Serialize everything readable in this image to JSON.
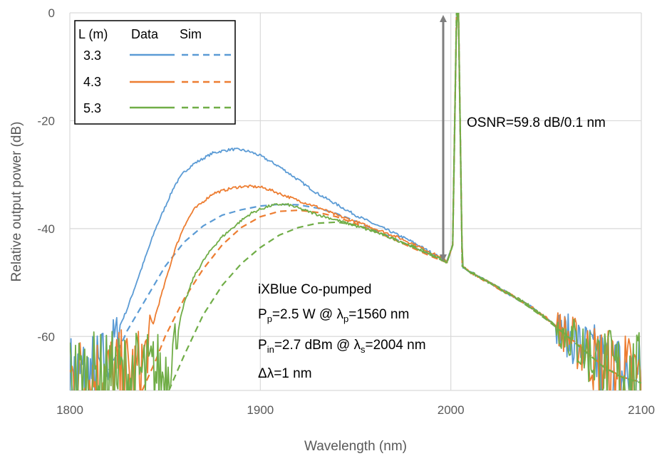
{
  "colors": {
    "series_3_3": "#5b9bd5",
    "series_4_3": "#ed7d31",
    "series_5_3": "#70ad47",
    "gridline": "#d9d9d9",
    "arrow": "#7f7f7f"
  },
  "chart_data": {
    "type": "line",
    "title": "",
    "xlabel": "Wavelength (nm)",
    "ylabel": "Relative output power (dB)",
    "xlim": [
      1800,
      2100
    ],
    "ylim": [
      -70,
      0
    ],
    "x_ticks": [
      1800,
      1900,
      2000,
      2100
    ],
    "y_ticks": [
      0,
      -20,
      -40,
      -60
    ],
    "x_tick_labels": [
      "1800",
      "1900",
      "2000",
      "2100"
    ],
    "y_tick_labels": [
      "0",
      "-20",
      "-40",
      "-60"
    ],
    "grid": true,
    "legend": {
      "placement": "top-left",
      "header": [
        "L (m)",
        "Data",
        "Sim"
      ],
      "rows": [
        "3.3",
        "4.3",
        "5.3"
      ]
    },
    "series": [
      {
        "name": "3.3",
        "kind": "Data",
        "color": "#5b9bd5",
        "x": [
          1800,
          1815,
          1820,
          1825,
          1830,
          1835,
          1840,
          1845,
          1850,
          1855,
          1860,
          1865,
          1870,
          1875,
          1880,
          1885,
          1890,
          1895,
          1900,
          1910,
          1920,
          1930,
          1940,
          1950,
          1960,
          1970,
          1980,
          1990,
          1998,
          2001,
          2003,
          2004,
          2006,
          2010,
          2020,
          2030,
          2040,
          2050,
          2060,
          2070,
          2080,
          2090,
          2100
        ],
        "y": [
          -68,
          -67,
          -64,
          -59,
          -55,
          -50,
          -45,
          -40,
          -36,
          -32,
          -29.5,
          -28,
          -27,
          -26,
          -25.6,
          -25.3,
          -25.4,
          -25.8,
          -26.5,
          -28.5,
          -31,
          -33.5,
          -35.5,
          -37.5,
          -39.2,
          -40.8,
          -42.5,
          -44.5,
          -46,
          -43,
          0,
          0,
          -47,
          -48,
          -50,
          -52,
          -54,
          -56.5,
          -59.5,
          -62.5,
          -65.5,
          -67.5,
          -68
        ]
      },
      {
        "name": "3.3",
        "kind": "Sim",
        "color": "#5b9bd5",
        "x": [
          1818,
          1825,
          1830,
          1840,
          1850,
          1860,
          1870,
          1880,
          1890,
          1900,
          1910,
          1920,
          1930,
          1940,
          1950,
          1960,
          1970,
          1980,
          1990,
          1998,
          2001,
          2003,
          2004,
          2006,
          2010,
          2020,
          2030,
          2040,
          2050,
          2060,
          2070,
          2080,
          2090,
          2100
        ],
        "y": [
          -68,
          -63,
          -59,
          -53,
          -47,
          -42.5,
          -39.5,
          -37.5,
          -36.5,
          -35.8,
          -35.5,
          -35.6,
          -36.2,
          -37.2,
          -38.6,
          -40.2,
          -41.8,
          -43.4,
          -45,
          -46.2,
          -43,
          0,
          0,
          -47,
          -48,
          -50,
          -52,
          -54.2,
          -56.5,
          -59.5,
          -62.5,
          -65.5,
          -67.5,
          -68.5
        ]
      },
      {
        "name": "4.3",
        "kind": "Data",
        "color": "#ed7d31",
        "x": [
          1800,
          1835,
          1840,
          1845,
          1850,
          1855,
          1860,
          1865,
          1870,
          1875,
          1880,
          1885,
          1890,
          1895,
          1900,
          1905,
          1910,
          1920,
          1930,
          1940,
          1950,
          1960,
          1970,
          1980,
          1990,
          1998,
          2001,
          2003,
          2004,
          2006,
          2010,
          2020,
          2030,
          2040,
          2050,
          2060,
          2070,
          2080,
          2090,
          2100
        ],
        "y": [
          -68,
          -67,
          -63,
          -56,
          -50,
          -44,
          -39.5,
          -36.5,
          -35,
          -33.5,
          -33,
          -32.5,
          -32.2,
          -32.2,
          -32.3,
          -32.8,
          -33.5,
          -34.8,
          -36,
          -37.5,
          -38.7,
          -40,
          -41.3,
          -42.8,
          -44.5,
          -46,
          -43,
          0,
          0,
          -47,
          -48,
          -50,
          -52,
          -54,
          -56.5,
          -59.5,
          -62.5,
          -65.5,
          -67.5,
          -68
        ]
      },
      {
        "name": "4.3",
        "kind": "Sim",
        "color": "#ed7d31",
        "x": [
          1838,
          1845,
          1850,
          1860,
          1870,
          1880,
          1890,
          1900,
          1910,
          1920,
          1930,
          1940,
          1950,
          1960,
          1970,
          1980,
          1990,
          1998,
          2001,
          2003,
          2004,
          2006,
          2010,
          2020,
          2030,
          2040,
          2050,
          2060,
          2070,
          2080,
          2090,
          2100
        ],
        "y": [
          -70,
          -64.5,
          -60,
          -53,
          -47.5,
          -43,
          -39.8,
          -37.8,
          -36.8,
          -36.6,
          -37,
          -37.8,
          -39.1,
          -40.5,
          -42,
          -43.6,
          -45.2,
          -46.3,
          -43,
          0,
          0,
          -47,
          -48,
          -50,
          -52,
          -54.2,
          -56.7,
          -59.5,
          -62.5,
          -65.5,
          -67.5,
          -68.5
        ]
      },
      {
        "name": "5.3",
        "kind": "Data",
        "color": "#70ad47",
        "x": [
          1800,
          1850,
          1855,
          1860,
          1865,
          1870,
          1875,
          1880,
          1885,
          1890,
          1895,
          1900,
          1905,
          1910,
          1915,
          1920,
          1930,
          1940,
          1950,
          1960,
          1970,
          1980,
          1990,
          1998,
          2001,
          2003,
          2004,
          2006,
          2010,
          2020,
          2030,
          2040,
          2050,
          2060,
          2070,
          2080,
          2090,
          2100
        ],
        "y": [
          -68,
          -67,
          -61,
          -54,
          -49,
          -46,
          -43.5,
          -41.5,
          -40,
          -38.5,
          -37.2,
          -36.4,
          -35.8,
          -35.5,
          -35.6,
          -36.2,
          -37.4,
          -38.4,
          -39.5,
          -40.6,
          -41.9,
          -43.3,
          -44.8,
          -46.2,
          -43,
          0,
          0,
          -47,
          -48,
          -50,
          -52,
          -54,
          -56.5,
          -59.5,
          -62.5,
          -65.5,
          -67.5,
          -68
        ]
      },
      {
        "name": "5.3",
        "kind": "Sim",
        "color": "#70ad47",
        "x": [
          1852,
          1860,
          1870,
          1880,
          1890,
          1900,
          1910,
          1920,
          1930,
          1940,
          1950,
          1960,
          1970,
          1980,
          1990,
          1998,
          2001,
          2003,
          2004,
          2006,
          2010,
          2020,
          2030,
          2040,
          2050,
          2060,
          2070,
          2080,
          2090,
          2100
        ],
        "y": [
          -70,
          -63.5,
          -56,
          -50.5,
          -46.5,
          -43.5,
          -41.2,
          -39.8,
          -39,
          -38.8,
          -39.3,
          -40.4,
          -41.8,
          -43.4,
          -45,
          -46.3,
          -43,
          0,
          0,
          -47,
          -48,
          -50,
          -52,
          -54.3,
          -56.8,
          -59.6,
          -62.6,
          -65.6,
          -67.6,
          -68.6
        ]
      }
    ],
    "annotations": {
      "osnr": "OSNR=59.8 dB/0.1 nm",
      "arrow_x": 1996,
      "arrow_y_top": 0,
      "arrow_y_bottom": -46.5,
      "line1": "iXBlue Co-pumped",
      "pp_main": "P",
      "pp_sub": "p",
      "pp_mid": "=2.5 W @ λ",
      "pp_sub2": "p",
      "pp_end": "=1560 nm",
      "pin_main": "P",
      "pin_sub": "in",
      "pin_mid": "=2.7 dBm @ λ",
      "pin_sub2": "s",
      "pin_end": "=2004 nm",
      "dl": "Δλ=1 nm"
    }
  }
}
